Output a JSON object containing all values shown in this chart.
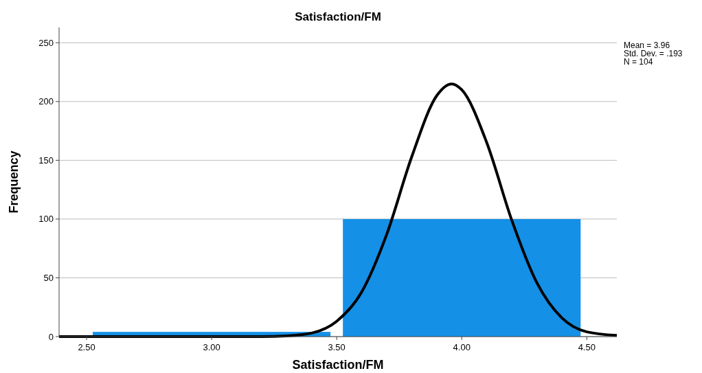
{
  "chart_data": {
    "type": "histogram",
    "title": "Satisfaction/FM",
    "xlabel": "Satisfaction/FM",
    "ylabel": "Frequency",
    "xlim": [
      2.39,
      4.62
    ],
    "xticks": [
      {
        "value": 2.5,
        "label": "2.50"
      },
      {
        "value": 3,
        "label": "3.00"
      },
      {
        "value": 3.5,
        "label": "3.50"
      },
      {
        "value": 4,
        "label": "4.00"
      },
      {
        "value": 4.5,
        "label": "4.50"
      }
    ],
    "ylim": [
      0,
      263
    ],
    "yticks": [
      0,
      50,
      100,
      150,
      200,
      250
    ],
    "grid": "y",
    "series": [
      {
        "color": "#1490e6",
        "bins": [
          2.5,
          3.5,
          4.5
        ],
        "values": [
          4,
          100
        ]
      },
      {
        "type": "line",
        "color": "#000000",
        "x": [
          2.39,
          3.0,
          3.2,
          3.3,
          3.4,
          3.5,
          3.6,
          3.7,
          3.8,
          3.9,
          3.96,
          4.0,
          4.1,
          4.2,
          4.3,
          4.4,
          4.5,
          4.62
        ],
        "values": [
          0,
          0,
          0,
          0.6,
          3,
          13,
          38,
          87,
          153,
          205,
          215,
          210,
          165,
          99,
          46,
          16,
          4,
          1
        ]
      }
    ],
    "annotations": [
      "Mean = 3.96",
      "Std. Dev. = .193",
      "N = 104"
    ]
  }
}
